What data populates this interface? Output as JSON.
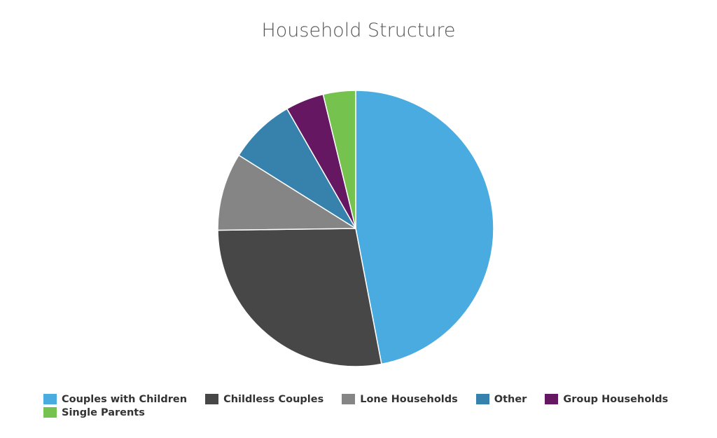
{
  "chart_data": {
    "type": "pie",
    "title": "Household Structure",
    "slices": [
      {
        "label": "Couples with Children",
        "value": 47.0,
        "color": "#49ABE0"
      },
      {
        "label": "Childless Couples",
        "value": 27.8,
        "color": "#474747"
      },
      {
        "label": "Lone Households",
        "value": 9.1,
        "color": "#858585"
      },
      {
        "label": "Other",
        "value": 7.8,
        "color": "#3682AD"
      },
      {
        "label": "Group Households",
        "value": 4.5,
        "color": "#651762"
      },
      {
        "label": "Single Parents",
        "value": 3.8,
        "color": "#76C24F"
      }
    ],
    "legend_position": "bottom"
  }
}
